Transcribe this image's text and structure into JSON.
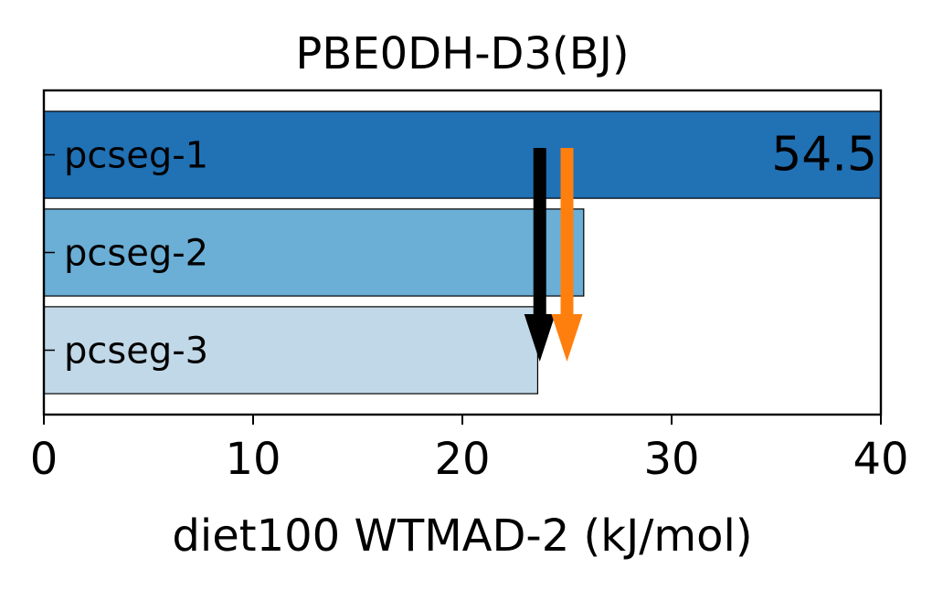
{
  "chart_data": {
    "type": "bar",
    "orientation": "horizontal",
    "title": "PBE0DH-D3(BJ)",
    "xlabel": "diet100 WTMAD-2 (kJ/mol)",
    "ylabel": "",
    "xlim": [
      0,
      40
    ],
    "xticks": [
      "0",
      "10",
      "20",
      "30",
      "40"
    ],
    "grid": false,
    "categories": [
      "pcseg-1",
      "pcseg-2",
      "pcseg-3"
    ],
    "values": [
      54.5,
      25.8,
      23.6
    ],
    "bar_colors": [
      "#2171b5",
      "#6baed6",
      "#c1d8e8"
    ],
    "value_labels": [
      "54.5",
      "",
      ""
    ],
    "reference_arrows": [
      {
        "x": 23.7,
        "color": "#000000"
      },
      {
        "x": 25.0,
        "color": "#ff7f0e"
      }
    ]
  }
}
